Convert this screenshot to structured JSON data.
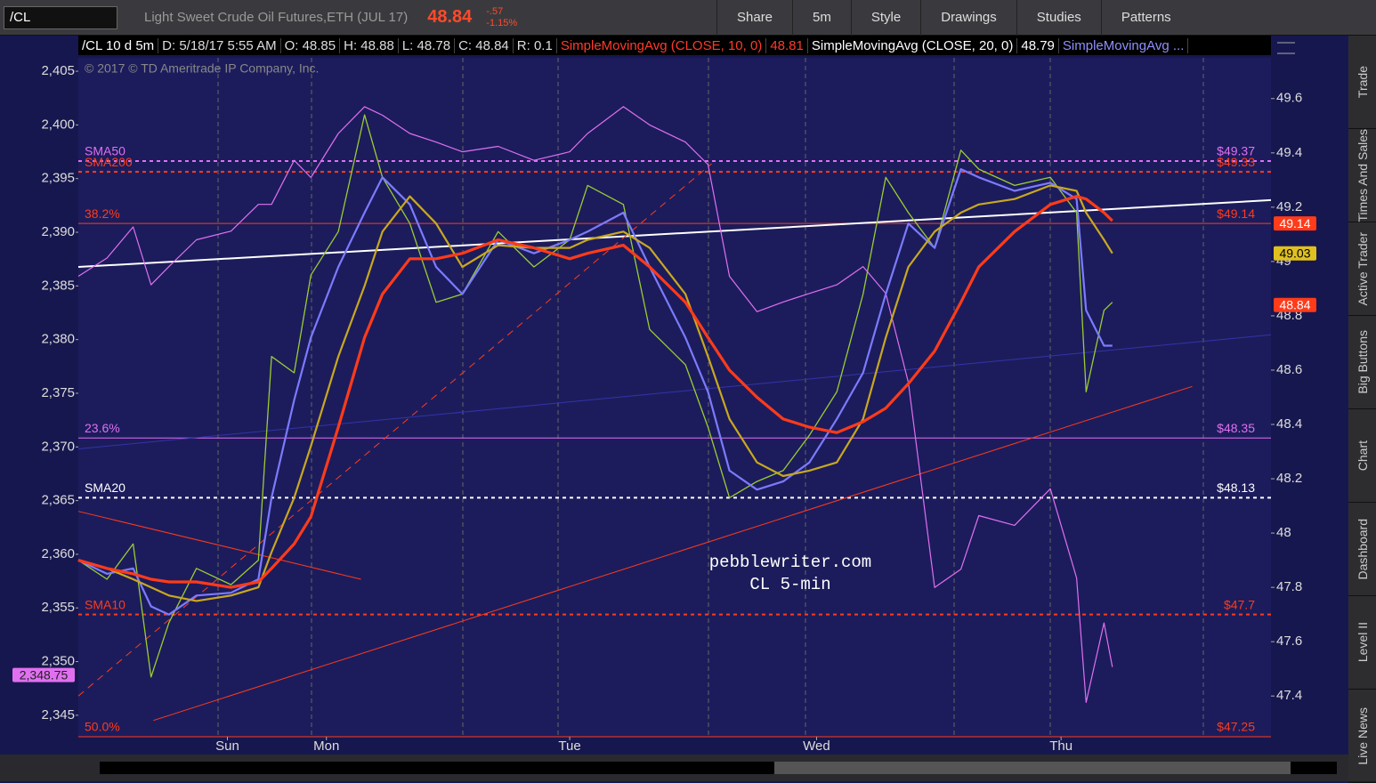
{
  "toolbar": {
    "symbol": "/CL",
    "description": "Light Sweet Crude Oil Futures,ETH (JUL 17)",
    "last": "48.84",
    "change": "-.57",
    "change_pct": "-1.15%",
    "buttons": [
      "Share",
      "5m",
      "Style",
      "Drawings",
      "Studies",
      "Patterns"
    ]
  },
  "info_bar": [
    {
      "text": "/CL 10 d 5m",
      "color": "#ffffff"
    },
    {
      "text": "D: 5/18/17 5:55 AM",
      "color": "#dddddd"
    },
    {
      "text": "O: 48.85",
      "color": "#dddddd"
    },
    {
      "text": "H: 48.88",
      "color": "#dddddd"
    },
    {
      "text": "L: 48.78",
      "color": "#dddddd"
    },
    {
      "text": "C: 48.84",
      "color": "#dddddd"
    },
    {
      "text": "R: 0.1",
      "color": "#dddddd"
    },
    {
      "text": "SimpleMovingAvg (CLOSE, 10, 0)",
      "color": "#ff3b2a"
    },
    {
      "text": "48.81",
      "color": "#ff3b2a"
    },
    {
      "text": "SimpleMovingAvg (CLOSE, 20, 0)",
      "color": "#ffffff"
    },
    {
      "text": "48.79",
      "color": "#ffffff"
    },
    {
      "text": "SimpleMovingAvg ...",
      "color": "#8f8fff"
    }
  ],
  "side_tabs": [
    "Trade",
    "Times And Sales",
    "Active Trader",
    "Big Buttons",
    "Chart",
    "Dashboard",
    "Level II",
    "Live News"
  ],
  "chart_data": {
    "type": "line",
    "copyright": "© 2017 © TD Ameritrade IP Company, Inc.",
    "watermark": [
      "pebblewriter.com",
      "CL 5-min"
    ],
    "grid": true,
    "xlim": [
      0,
      100
    ],
    "xticks": [
      {
        "value": 12.5,
        "label": "Sun"
      },
      {
        "value": 20.8,
        "label": "Mon"
      },
      {
        "value": 41.2,
        "label": "Tue"
      },
      {
        "value": 61.9,
        "label": "Wed"
      },
      {
        "value": 82.4,
        "label": "Thu"
      }
    ],
    "ylim": [
      2343,
      2406.25
    ],
    "yticks": [
      {
        "value": 2345,
        "label": "2,345"
      },
      {
        "value": 2350,
        "label": "2,350"
      },
      {
        "value": 2355,
        "label": "2,355"
      },
      {
        "value": 2360,
        "label": "2,360"
      },
      {
        "value": 2365,
        "label": "2,365"
      },
      {
        "value": 2370,
        "label": "2,370"
      },
      {
        "value": 2375,
        "label": "2,375"
      },
      {
        "value": 2380,
        "label": "2,380"
      },
      {
        "value": 2385,
        "label": "2,385"
      },
      {
        "value": 2390,
        "label": "2,390"
      },
      {
        "value": 2395,
        "label": "2,395"
      },
      {
        "value": 2400,
        "label": "2,400"
      },
      {
        "value": 2405,
        "label": "2,405"
      }
    ],
    "y2lim": [
      47.25,
      49.75
    ],
    "y2ticks": [
      47.4,
      47.6,
      47.8,
      48,
      48.2,
      48.4,
      48.6,
      48.8,
      49,
      49.2,
      49.4,
      49.6
    ],
    "x": [
      0,
      2.4,
      4.6,
      6.1,
      7.6,
      9.9,
      12.8,
      15.1,
      16.2,
      18.1,
      19.5,
      21.8,
      24.0,
      25.5,
      27.8,
      30.0,
      32.2,
      35.2,
      38.2,
      41.2,
      42.7,
      45.7,
      47.9,
      50.9,
      52.8,
      54.6,
      56.9,
      59.1,
      61.3,
      63.6,
      65.8,
      67.7,
      69.6,
      71.8,
      74.0,
      75.5,
      78.5,
      81.5,
      83.7,
      84.5,
      86.0,
      86.7
    ],
    "series": [
      {
        "color": "#e070f0",
        "width": 1.2,
        "values": [
          2385.9,
          2387.6,
          2390.5,
          2385.1,
          2386.8,
          2389.3,
          2390.1,
          2392.6,
          2392.6,
          2396.7,
          2395.1,
          2399.2,
          2401.7,
          2400.9,
          2399.2,
          2398.4,
          2397.5,
          2398.0,
          2396.7,
          2397.5,
          2399.2,
          2401.7,
          2400.0,
          2398.4,
          2396.3,
          2385.9,
          2382.6,
          2383.5,
          2384.3,
          2385.1,
          2386.8,
          2384.3,
          2376.0,
          2356.9,
          2358.6,
          2363.6,
          2362.7,
          2366.1,
          2357.8,
          2346.2,
          2353.6,
          2349.5
        ]
      },
      {
        "axis": "y2",
        "color": "#9acd32",
        "width": 1.3,
        "values": [
          47.9,
          47.83,
          47.96,
          47.47,
          47.67,
          47.87,
          47.81,
          47.9,
          48.65,
          48.59,
          48.95,
          49.11,
          49.54,
          49.31,
          49.14,
          48.85,
          48.88,
          49.11,
          48.98,
          49.08,
          49.28,
          49.21,
          48.75,
          48.62,
          48.39,
          48.13,
          48.19,
          48.23,
          48.36,
          48.52,
          48.88,
          49.31,
          49.18,
          49.05,
          49.41,
          49.34,
          49.28,
          49.31,
          49.18,
          48.52,
          48.82,
          48.85
        ]
      },
      {
        "axis": "y2",
        "color": "#7b7bff",
        "width": 2.2,
        "values": [
          47.9,
          47.85,
          47.87,
          47.73,
          47.7,
          47.77,
          47.78,
          47.83,
          48.13,
          48.49,
          48.72,
          48.98,
          49.18,
          49.31,
          49.21,
          48.98,
          48.88,
          49.08,
          49.03,
          49.08,
          49.11,
          49.18,
          48.98,
          48.72,
          48.52,
          48.23,
          48.16,
          48.19,
          48.26,
          48.42,
          48.59,
          48.88,
          49.14,
          49.05,
          49.34,
          49.31,
          49.26,
          49.29,
          49.23,
          48.82,
          48.69,
          48.69
        ]
      },
      {
        "axis": "y2",
        "color": "#c9a81f",
        "width": 2.2,
        "values": [
          47.9,
          47.87,
          47.83,
          47.8,
          47.77,
          47.75,
          47.77,
          47.8,
          47.93,
          48.13,
          48.32,
          48.65,
          48.91,
          49.11,
          49.24,
          49.14,
          48.98,
          49.06,
          49.05,
          49.05,
          49.08,
          49.11,
          49.05,
          48.88,
          48.65,
          48.42,
          48.26,
          48.21,
          48.23,
          48.26,
          48.42,
          48.72,
          48.98,
          49.11,
          49.18,
          49.21,
          49.23,
          49.28,
          49.26,
          49.18,
          49.08,
          49.03
        ]
      },
      {
        "axis": "y2",
        "color": "#ff3b1a",
        "width": 3.2,
        "values": [
          47.9,
          47.87,
          47.85,
          47.83,
          47.82,
          47.82,
          47.8,
          47.82,
          47.87,
          47.96,
          48.06,
          48.39,
          48.72,
          48.88,
          49.01,
          49.01,
          49.03,
          49.08,
          49.05,
          49.01,
          49.03,
          49.06,
          48.98,
          48.85,
          48.72,
          48.6,
          48.5,
          48.42,
          48.39,
          48.37,
          48.41,
          48.46,
          48.55,
          48.67,
          48.85,
          48.98,
          49.11,
          49.21,
          49.24,
          49.23,
          49.18,
          49.15
        ]
      }
    ],
    "levels": [
      {
        "name": "SMA50",
        "value": 49.37,
        "value_label": "$49.37",
        "color": "#e070f0",
        "dashed": true
      },
      {
        "name": "SMA200",
        "value": 49.33,
        "value_label": "$49.33",
        "color": "#ff3b1a",
        "dashed": true
      },
      {
        "name": "38.2%",
        "value": 49.14,
        "value_label": "$49.14",
        "color": "#ff3b1a",
        "dashed": false
      },
      {
        "name": "23.6%",
        "value": 48.35,
        "value_label": "$48.35",
        "color": "#e070f0",
        "dashed": false
      },
      {
        "name": "SMA20",
        "value": 48.13,
        "value_label": "$48.13",
        "color": "#ffffff",
        "dashed": true
      },
      {
        "name": "SMA10",
        "value": 47.7,
        "value_label": "$47.7",
        "color": "#ff3b1a",
        "dashed": true
      },
      {
        "name": "50.0%",
        "value": 47.25,
        "value_label": "$47.25",
        "color": "#ff3b1a",
        "dashed": false
      }
    ],
    "trendlines": [
      {
        "x": [
          0,
          100
        ],
        "values": [
          48.98,
          49.226
        ],
        "color": "#ffffff",
        "width": 2
      },
      {
        "x": [
          6.3,
          93.4
        ],
        "values": [
          47.31,
          48.54
        ],
        "color": "#ff3b1a",
        "width": 1
      },
      {
        "x": [
          0,
          100
        ],
        "values": [
          48.31,
          48.73
        ],
        "color": "#3333aa",
        "width": 1
      },
      {
        "x": [
          0,
          53.1
        ],
        "values": [
          47.4,
          49.36
        ],
        "color": "#ff3b1a",
        "width": 1,
        "dashed": true
      },
      {
        "x": [
          0,
          23.7
        ],
        "values": [
          48.08,
          47.83
        ],
        "color": "#ff3b1a",
        "width": 1
      }
    ],
    "price_tags": [
      {
        "value": 49.14,
        "color": "#ff3b1a",
        "text_color": "#ffffff"
      },
      {
        "value": 49.03,
        "color": "#e0c020",
        "text_color": "#000000"
      },
      {
        "value": 48.84,
        "color": "#ff3b1a",
        "text_color": "#ffffff"
      }
    ],
    "left_tag": {
      "value": 2348.75,
      "label": "2,348.75",
      "color": "#e070f0"
    }
  }
}
